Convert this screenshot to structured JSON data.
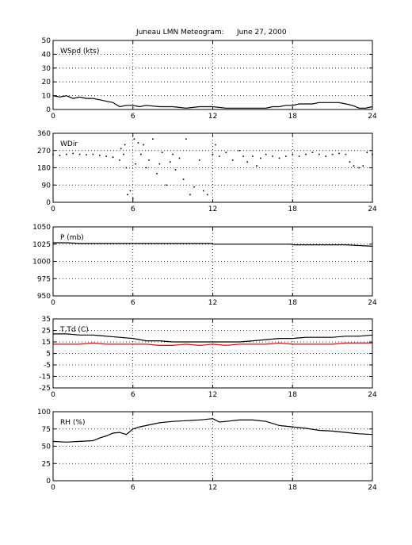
{
  "title": "Juneau LMN Meteogram:",
  "date": "June 27, 2000",
  "chart_data": [
    {
      "type": "line",
      "panel_label": "WSpd (kts)",
      "xlim": [
        0,
        24
      ],
      "ylim": [
        0,
        50
      ],
      "x_ticks": [
        0,
        6,
        12,
        18,
        24
      ],
      "y_ticks": [
        0,
        10,
        20,
        30,
        40,
        50
      ],
      "grid": true,
      "series": [
        {
          "color": "#000000",
          "x": [
            0,
            0.5,
            1,
            1.5,
            2,
            2.5,
            3,
            3.5,
            4,
            4.5,
            5,
            5.5,
            6,
            6.5,
            7,
            8,
            9,
            10,
            11,
            12,
            13,
            14,
            15,
            16,
            16.5,
            17,
            17.5,
            18,
            18.5,
            19,
            19.5,
            20,
            20.5,
            21,
            21.5,
            22,
            22.5,
            23,
            23.5,
            24
          ],
          "y": [
            10,
            9,
            10,
            8,
            9,
            8,
            8,
            7,
            6,
            5,
            2,
            3,
            3,
            2,
            3,
            2,
            2,
            1,
            2,
            2,
            1,
            1,
            1,
            1,
            2,
            2,
            3,
            3,
            4,
            4,
            4,
            5,
            5,
            5,
            5,
            4,
            3,
            1,
            1,
            2
          ]
        }
      ]
    },
    {
      "type": "scatter",
      "panel_label": "WDir",
      "xlim": [
        0,
        24
      ],
      "ylim": [
        0,
        360
      ],
      "x_ticks": [
        0,
        6,
        12,
        18,
        24
      ],
      "y_ticks": [
        0,
        90,
        180,
        270,
        360
      ],
      "grid": true,
      "series": [
        {
          "color": "#000000",
          "x": [
            0,
            0.5,
            1,
            1.5,
            2,
            2.5,
            3,
            3.5,
            4,
            4.5,
            5,
            5.1,
            5.3,
            5.4,
            5.5,
            5.6,
            5.8,
            6,
            6.1,
            6.2,
            6.4,
            6.6,
            6.8,
            7,
            7.2,
            7.5,
            7.8,
            8,
            8.2,
            8.5,
            8.8,
            9,
            9.2,
            9.5,
            9.8,
            10,
            10.3,
            10.6,
            11,
            11.3,
            11.6,
            12,
            12.2,
            12.5,
            13,
            13.5,
            14,
            14.3,
            14.6,
            15,
            15.3,
            15.6,
            16,
            16.5,
            17,
            17.5,
            18,
            18.5,
            19,
            19.5,
            20,
            20.5,
            21,
            21.5,
            22,
            22.3,
            22.6,
            23,
            23.3,
            23.6,
            24
          ],
          "y": [
            250,
            245,
            250,
            255,
            250,
            248,
            250,
            245,
            240,
            235,
            220,
            280,
            250,
            300,
            180,
            40,
            60,
            20,
            330,
            200,
            310,
            250,
            300,
            180,
            220,
            330,
            150,
            200,
            260,
            90,
            210,
            250,
            170,
            230,
            120,
            330,
            40,
            80,
            220,
            60,
            40,
            250,
            300,
            240,
            260,
            220,
            270,
            240,
            210,
            240,
            190,
            230,
            250,
            240,
            230,
            240,
            250,
            240,
            250,
            260,
            250,
            240,
            250,
            255,
            250,
            210,
            190,
            180,
            190,
            260,
            250
          ]
        }
      ]
    },
    {
      "type": "line",
      "panel_label": "P (mb)",
      "xlim": [
        0,
        24
      ],
      "ylim": [
        950,
        1050
      ],
      "x_ticks": [
        0,
        6,
        12,
        18,
        24
      ],
      "y_ticks": [
        950,
        975,
        1000,
        1025,
        1050
      ],
      "grid": true,
      "series": [
        {
          "color": "#000000",
          "x": [
            0,
            1,
            2,
            4,
            6,
            8,
            10,
            11.9,
            12,
            14,
            16,
            17.9,
            18,
            20,
            22,
            23,
            24
          ],
          "y": [
            1027,
            1027,
            1026,
            1026,
            1026,
            1026,
            1026,
            1026,
            1025,
            1025,
            1025,
            1025,
            1024,
            1024,
            1024,
            1023,
            1022
          ]
        }
      ]
    },
    {
      "type": "line",
      "panel_label": "T,Td (C)",
      "xlim": [
        0,
        24
      ],
      "ylim": [
        -25,
        35
      ],
      "x_ticks": [
        0,
        6,
        12,
        18,
        24
      ],
      "y_ticks": [
        -25,
        -15,
        -5,
        5,
        15,
        25,
        35
      ],
      "grid": true,
      "series": [
        {
          "color": "#000000",
          "x": [
            0,
            1,
            2,
            3,
            4,
            5,
            6,
            7,
            8,
            9,
            10,
            11,
            12,
            13,
            14,
            15,
            16,
            17,
            18,
            19,
            20,
            21,
            22,
            23,
            24
          ],
          "y": [
            22,
            22,
            21,
            21,
            20,
            19,
            18,
            16,
            16,
            15,
            15,
            15,
            15,
            15,
            15,
            16,
            17,
            18,
            18,
            19,
            19,
            19,
            20,
            20,
            21
          ]
        },
        {
          "color": "#ff0000",
          "x": [
            0,
            1,
            2,
            3,
            4,
            5,
            6,
            7,
            8,
            9,
            10,
            11,
            12,
            13,
            14,
            15,
            16,
            17,
            18,
            19,
            20,
            21,
            22,
            23,
            24
          ],
          "y": [
            13,
            13,
            13,
            14,
            13,
            13,
            13,
            13,
            12,
            12,
            13,
            12,
            13,
            12,
            13,
            13,
            13,
            14,
            13,
            13,
            13,
            13,
            14,
            14,
            14
          ]
        }
      ]
    },
    {
      "type": "line",
      "panel_label": "RH (%)",
      "xlim": [
        0,
        24
      ],
      "ylim": [
        0,
        100
      ],
      "x_ticks": [
        0,
        6,
        12,
        18,
        24
      ],
      "y_ticks": [
        0,
        25,
        50,
        75,
        100
      ],
      "grid": true,
      "series": [
        {
          "color": "#000000",
          "x": [
            0,
            1,
            2,
            3,
            3.5,
            4,
            4.5,
            5,
            5.5,
            6,
            6.5,
            7,
            8,
            9,
            10,
            11,
            12,
            12.5,
            13,
            14,
            15,
            16,
            17,
            18,
            19,
            20,
            21,
            22,
            23,
            24
          ],
          "y": [
            57,
            56,
            57,
            58,
            62,
            65,
            69,
            70,
            67,
            75,
            78,
            80,
            84,
            86,
            87,
            88,
            90,
            85,
            86,
            88,
            88,
            86,
            80,
            78,
            76,
            73,
            72,
            70,
            68,
            67
          ]
        }
      ]
    }
  ]
}
